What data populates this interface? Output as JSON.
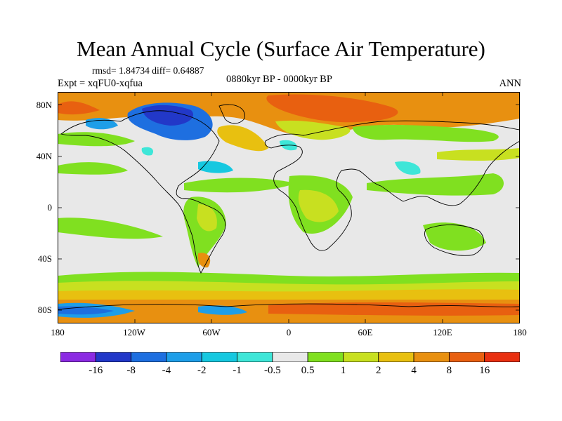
{
  "title": "Mean Annual Cycle (Surface Air Temperature)",
  "stats": "rmsd= 1.84734 diff= 0.64887",
  "expt": "Expt = xqFU0-xqfua",
  "period": "0880kyr BP - 0000kyr BP",
  "season": "ANN",
  "lat_labels": [
    "80N",
    "40N",
    "0",
    "40S",
    "80S"
  ],
  "lon_labels": [
    "180",
    "120W",
    "60W",
    "0",
    "60E",
    "120E",
    "180"
  ],
  "colorbar": {
    "colors": [
      "#8b2be2",
      "#2238c8",
      "#1e6fe0",
      "#1e9ee8",
      "#16c8e0",
      "#3ee6d8",
      "#e8e8e8",
      "#80e020",
      "#c8e020",
      "#e8c010",
      "#e89010",
      "#e86010",
      "#e83010"
    ],
    "labels": [
      "-16",
      "-8",
      "-4",
      "-2",
      "-1",
      "-0.5",
      "0.5",
      "1",
      "2",
      "4",
      "8",
      "16"
    ]
  }
}
